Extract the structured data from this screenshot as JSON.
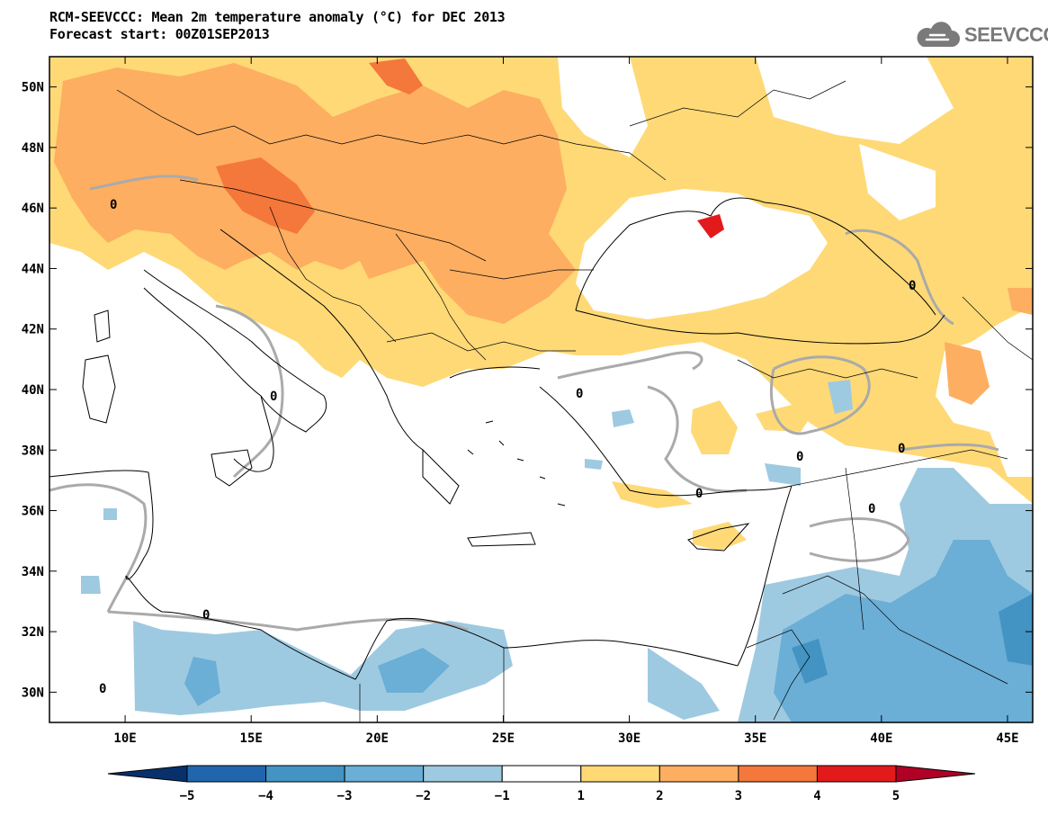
{
  "header": {
    "title_line1": "RCM-SEEVCCC: Mean 2m temperature anomaly (°C) for DEC 2013",
    "title_line2": "Forecast start: 00Z01SEP2013",
    "logo_text": "SEEVCCC",
    "logo_icon": "cloud-logo-icon"
  },
  "map": {
    "lon_range": [
      7,
      46
    ],
    "lat_range": [
      29,
      51
    ],
    "lat_labels": [
      "30N",
      "32N",
      "34N",
      "36N",
      "38N",
      "40N",
      "42N",
      "44N",
      "46N",
      "48N",
      "50N"
    ],
    "lon_labels": [
      "10E",
      "15E",
      "20E",
      "25E",
      "30E",
      "35E",
      "40E",
      "45E"
    ],
    "contour_label": "0"
  },
  "legend": {
    "tick_labels": [
      "−5",
      "−4",
      "−3",
      "−2",
      "−1",
      "1",
      "2",
      "3",
      "4",
      "5"
    ],
    "colors": [
      "#08306b",
      "#2166ac",
      "#4393c3",
      "#6baed6",
      "#9ecae1",
      "#ffffff",
      "#fed976",
      "#fdae61",
      "#f4773b",
      "#e31a1c",
      "#b10026"
    ]
  }
}
